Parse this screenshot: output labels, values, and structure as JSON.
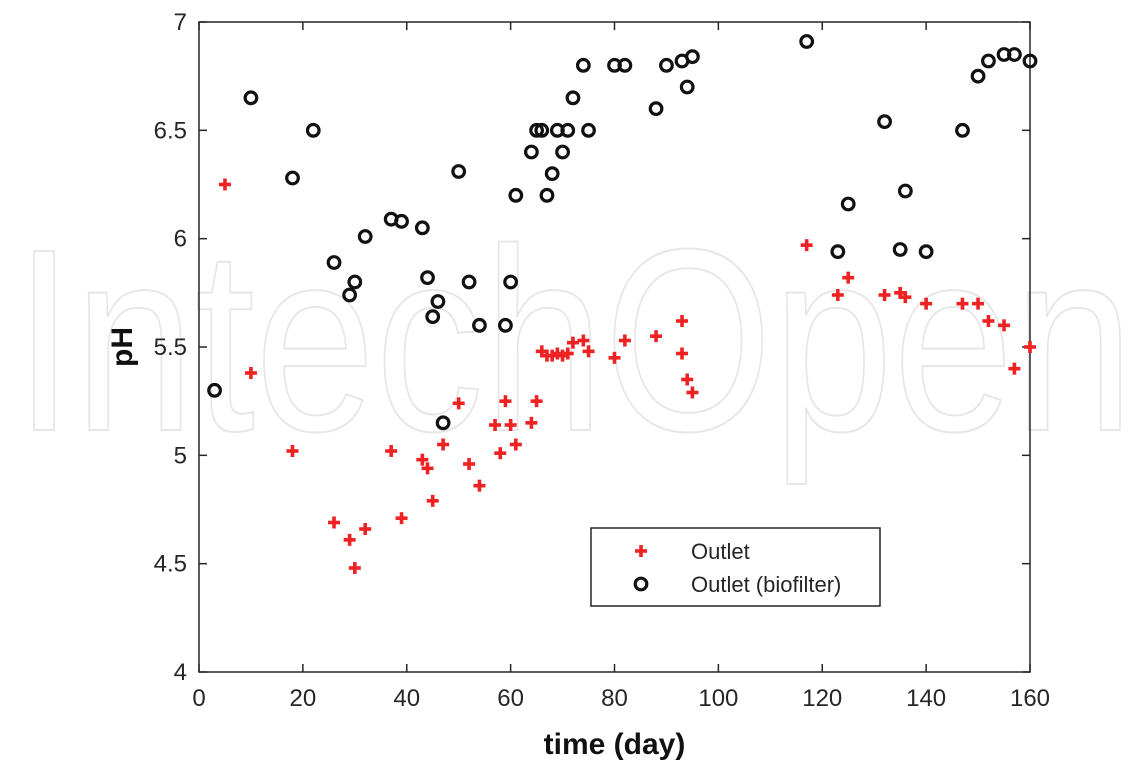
{
  "chart_data": {
    "type": "scatter",
    "title": "",
    "xlabel": "time (day)",
    "ylabel": "pH",
    "xlim": [
      0,
      160
    ],
    "ylim": [
      4,
      7
    ],
    "xticks": [
      "0",
      "20",
      "40",
      "60",
      "80",
      "100",
      "120",
      "140",
      "160"
    ],
    "yticks": [
      "4",
      "4.5",
      "5",
      "5.5",
      "6",
      "6.5",
      "7"
    ],
    "grid": false,
    "legend_position": "lower-right",
    "series": [
      {
        "name": "Outlet",
        "marker": "plus",
        "color": "#ee2222",
        "points": [
          [
            5,
            6.25
          ],
          [
            10,
            5.38
          ],
          [
            18,
            5.02
          ],
          [
            26,
            4.69
          ],
          [
            29,
            4.61
          ],
          [
            30,
            4.48
          ],
          [
            32,
            4.66
          ],
          [
            37,
            5.02
          ],
          [
            39,
            4.71
          ],
          [
            43,
            4.98
          ],
          [
            44,
            4.94
          ],
          [
            45,
            4.79
          ],
          [
            47,
            5.05
          ],
          [
            50,
            5.24
          ],
          [
            52,
            4.96
          ],
          [
            54,
            4.86
          ],
          [
            57,
            5.14
          ],
          [
            58,
            5.01
          ],
          [
            59,
            5.25
          ],
          [
            60,
            5.14
          ],
          [
            61,
            5.05
          ],
          [
            64,
            5.15
          ],
          [
            65,
            5.25
          ],
          [
            66,
            5.48
          ],
          [
            67,
            5.46
          ],
          [
            68,
            5.46
          ],
          [
            69,
            5.47
          ],
          [
            70,
            5.46
          ],
          [
            71,
            5.47
          ],
          [
            72,
            5.52
          ],
          [
            74,
            5.53
          ],
          [
            75,
            5.48
          ],
          [
            80,
            5.45
          ],
          [
            82,
            5.53
          ],
          [
            88,
            5.55
          ],
          [
            93,
            5.62
          ],
          [
            93,
            5.47
          ],
          [
            94,
            5.35
          ],
          [
            95,
            5.29
          ],
          [
            117,
            5.97
          ],
          [
            123,
            5.74
          ],
          [
            125,
            5.82
          ],
          [
            132,
            5.74
          ],
          [
            135,
            5.75
          ],
          [
            136,
            5.73
          ],
          [
            140,
            5.7
          ],
          [
            147,
            5.7
          ],
          [
            150,
            5.7
          ],
          [
            152,
            5.62
          ],
          [
            155,
            5.6
          ],
          [
            157,
            5.4
          ],
          [
            160,
            5.5
          ]
        ]
      },
      {
        "name": "Outlet (biofilter)",
        "marker": "circle",
        "color": "#111111",
        "points": [
          [
            3,
            5.3
          ],
          [
            10,
            6.65
          ],
          [
            18,
            6.28
          ],
          [
            22,
            6.5
          ],
          [
            26,
            5.89
          ],
          [
            29,
            5.74
          ],
          [
            30,
            5.8
          ],
          [
            32,
            6.01
          ],
          [
            37,
            6.09
          ],
          [
            39,
            6.08
          ],
          [
            43,
            6.05
          ],
          [
            44,
            5.82
          ],
          [
            45,
            5.64
          ],
          [
            46,
            5.71
          ],
          [
            47,
            5.15
          ],
          [
            50,
            6.31
          ],
          [
            52,
            5.8
          ],
          [
            54,
            5.6
          ],
          [
            59,
            5.6
          ],
          [
            60,
            5.8
          ],
          [
            61,
            6.2
          ],
          [
            64,
            6.4
          ],
          [
            65,
            6.5
          ],
          [
            66,
            6.5
          ],
          [
            67,
            6.2
          ],
          [
            68,
            6.3
          ],
          [
            69,
            6.5
          ],
          [
            70,
            6.4
          ],
          [
            71,
            6.5
          ],
          [
            72,
            6.65
          ],
          [
            74,
            6.8
          ],
          [
            75,
            6.5
          ],
          [
            80,
            6.8
          ],
          [
            82,
            6.8
          ],
          [
            88,
            6.6
          ],
          [
            90,
            6.8
          ],
          [
            93,
            6.82
          ],
          [
            94,
            6.7
          ],
          [
            95,
            6.84
          ],
          [
            117,
            6.91
          ],
          [
            123,
            5.94
          ],
          [
            125,
            6.16
          ],
          [
            132,
            6.54
          ],
          [
            135,
            5.95
          ],
          [
            136,
            6.22
          ],
          [
            140,
            5.94
          ],
          [
            147,
            6.5
          ],
          [
            150,
            6.75
          ],
          [
            152,
            6.82
          ],
          [
            155,
            6.85
          ],
          [
            157,
            6.85
          ],
          [
            160,
            6.82
          ]
        ]
      }
    ]
  },
  "watermark": {
    "text": "IntechOpen"
  }
}
